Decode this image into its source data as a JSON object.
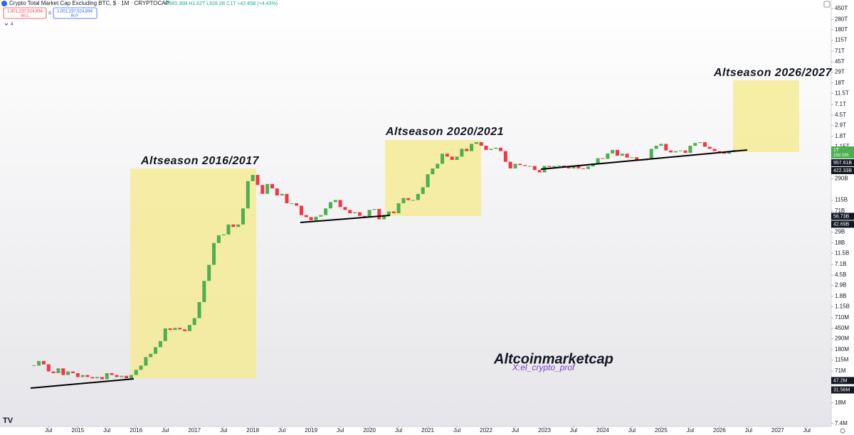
{
  "chart_data": {
    "type": "candlestick",
    "title": "Crypto Total Market Cap Excluding BTC, $ · 1M · CRYPTOCAP",
    "ohlc_text": "O960.36B H1.02T L928.2B C1T +42.45B (+4.43%)",
    "log_scale": true,
    "grid": false,
    "up_color": "#4caf50",
    "down_color": "#f23645",
    "x": [
      "2014-04",
      "2014-05",
      "2014-06",
      "2014-07",
      "2014-08",
      "2014-09",
      "2014-10",
      "2014-11",
      "2014-12",
      "2015-01",
      "2015-02",
      "2015-03",
      "2015-04",
      "2015-05",
      "2015-06",
      "2015-07",
      "2015-08",
      "2015-09",
      "2015-10",
      "2015-11",
      "2015-12",
      "2016-01",
      "2016-02",
      "2016-03",
      "2016-04",
      "2016-05",
      "2016-06",
      "2016-07",
      "2016-08",
      "2016-09",
      "2016-10",
      "2016-11",
      "2016-12",
      "2017-01",
      "2017-02",
      "2017-03",
      "2017-04",
      "2017-05",
      "2017-06",
      "2017-07",
      "2017-08",
      "2017-09",
      "2017-10",
      "2017-11",
      "2017-12",
      "2018-01",
      "2018-02",
      "2018-03",
      "2018-04",
      "2018-05",
      "2018-06",
      "2018-07",
      "2018-08",
      "2018-09",
      "2018-10",
      "2018-11",
      "2018-12",
      "2019-01",
      "2019-02",
      "2019-03",
      "2019-04",
      "2019-05",
      "2019-06",
      "2019-07",
      "2019-08",
      "2019-09",
      "2019-10",
      "2019-11",
      "2019-12",
      "2020-01",
      "2020-02",
      "2020-03",
      "2020-04",
      "2020-05",
      "2020-06",
      "2020-07",
      "2020-08",
      "2020-09",
      "2020-10",
      "2020-11",
      "2020-12",
      "2021-01",
      "2021-02",
      "2021-03",
      "2021-04",
      "2021-05",
      "2021-06",
      "2021-07",
      "2021-08",
      "2021-09",
      "2021-10",
      "2021-11",
      "2021-12",
      "2022-01",
      "2022-02",
      "2022-03",
      "2022-04",
      "2022-05",
      "2022-06",
      "2022-07",
      "2022-08",
      "2022-09",
      "2022-10",
      "2022-11",
      "2022-12",
      "2023-01",
      "2023-02",
      "2023-03",
      "2023-04",
      "2023-05",
      "2023-06",
      "2023-07",
      "2023-08",
      "2023-09",
      "2023-10",
      "2023-11",
      "2023-12",
      "2024-01",
      "2024-02",
      "2024-03",
      "2024-04",
      "2024-05",
      "2024-06",
      "2024-07",
      "2024-08",
      "2024-09",
      "2024-10",
      "2024-11",
      "2024-12",
      "2025-01",
      "2025-02",
      "2025-03",
      "2025-04",
      "2025-05",
      "2025-06",
      "2025-07",
      "2025-08",
      "2025-09",
      "2025-10",
      "2025-11",
      "2025-12",
      "2026-01",
      "2026-02",
      "2026-03",
      "2026-04"
    ],
    "close": [
      90000000.0,
      110000000.0,
      95000000.0,
      70000000.0,
      65000000.0,
      80000000.0,
      60000000.0,
      70000000.0,
      65000000.0,
      55000000.0,
      60000000.0,
      55000000.0,
      52000000.0,
      55000000.0,
      50000000.0,
      65000000.0,
      60000000.0,
      55000000.0,
      58000000.0,
      52000000.0,
      60000000.0,
      75000000.0,
      90000000.0,
      130000000.0,
      150000000.0,
      200000000.0,
      260000000.0,
      450000000.0,
      420000000.0,
      460000000.0,
      430000000.0,
      400000000.0,
      520000000.0,
      700000000.0,
      1400000000.0,
      3500000000.0,
      7000000000.0,
      18000000000.0,
      25000000000.0,
      26000000000.0,
      40000000000.0,
      36000000000.0,
      40000000000.0,
      80000000000.0,
      260000000000.0,
      340000000000.0,
      220000000000.0,
      150000000000.0,
      230000000000.0,
      190000000000.0,
      140000000000.0,
      150000000000.0,
      100000000000.0,
      100000000000.0,
      90000000000.0,
      60000000000.0,
      55000000000.0,
      48000000000.0,
      56000000000.0,
      60000000000.0,
      80000000000.0,
      105000000000.0,
      115000000000.0,
      85000000000.0,
      75000000000.0,
      65000000000.0,
      68000000000.0,
      58000000000.0,
      55000000000.0,
      75000000000.0,
      78000000000.0,
      50000000000.0,
      60000000000.0,
      70000000000.0,
      65000000000.0,
      100000000000.0,
      125000000000.0,
      115000000000.0,
      115000000000.0,
      150000000000.0,
      200000000000.0,
      350000000000.0,
      450000000000.0,
      550000000000.0,
      850000000000.0,
      750000000000.0,
      650000000000.0,
      750000000000.0,
      1050000000000.0,
      950000000000.0,
      1300000000000.0,
      1400000000000.0,
      1200000000000.0,
      1000000000000.0,
      1050000000000.0,
      1100000000000.0,
      950000000000.0,
      600000000000.0,
      450000000000.0,
      550000000000.0,
      520000000000.0,
      500000000000.0,
      500000000000.0,
      420000000000.0,
      380000000000.0,
      500000000000.0,
      480000000000.0,
      500000000000.0,
      510000000000.0,
      480000000000.0,
      450000000000.0,
      500000000000.0,
      450000000000.0,
      440000000000.0,
      490000000000.0,
      560000000000.0,
      700000000000.0,
      680000000000.0,
      860000000000.0,
      1000000000000.0,
      780000000000.0,
      850000000000.0,
      720000000000.0,
      730000000000.0,
      630000000000.0,
      660000000000.0,
      660000000000.0,
      1050000000000.0,
      1200000000000.0,
      1300000000000.0,
      980000000000.0,
      900000000000.0,
      950000000000.0,
      980000000000.0,
      880000000000.0,
      1200000000000.0,
      1350000000000.0,
      1400000000000.0,
      1150000000000.0,
      1050000000000.0,
      950000000000.0,
      900000000000.0,
      850000000000.0,
      960000000000.0,
      1000000000000.0
    ],
    "xlim": [
      "2013-09",
      "2027-12"
    ],
    "ylim": [
      6500000.0,
      650000000000000.0
    ],
    "xticks": [
      {
        "value": "2014-07",
        "label": "Jul"
      },
      {
        "value": "2015-01",
        "label": "2015"
      },
      {
        "value": "2015-07",
        "label": "Jul"
      },
      {
        "value": "2016-01",
        "label": "2016"
      },
      {
        "value": "2016-07",
        "label": "Jul"
      },
      {
        "value": "2017-01",
        "label": "2017"
      },
      {
        "value": "2017-07",
        "label": "Jul"
      },
      {
        "value": "2018-01",
        "label": "2018"
      },
      {
        "value": "2018-07",
        "label": "Jul"
      },
      {
        "value": "2019-01",
        "label": "2019"
      },
      {
        "value": "2019-07",
        "label": "Jul"
      },
      {
        "value": "2020-01",
        "label": "2020"
      },
      {
        "value": "2020-07",
        "label": "Jul"
      },
      {
        "value": "2021-01",
        "label": "2021"
      },
      {
        "value": "2021-07",
        "label": "Jul"
      },
      {
        "value": "2022-01",
        "label": "2022"
      },
      {
        "value": "2022-07",
        "label": "Jul"
      },
      {
        "value": "2023-01",
        "label": "2023"
      },
      {
        "value": "2023-07",
        "label": "Jul"
      },
      {
        "value": "2024-01",
        "label": "2024"
      },
      {
        "value": "2024-07",
        "label": "Jul"
      },
      {
        "value": "2025-01",
        "label": "2025"
      },
      {
        "value": "2025-07",
        "label": "Jul"
      },
      {
        "value": "2026-01",
        "label": "2026"
      },
      {
        "value": "2026-07",
        "label": "Jul"
      },
      {
        "value": "2027-01",
        "label": "2027"
      },
      {
        "value": "2027-07",
        "label": "Jul"
      }
    ],
    "yticks": [
      {
        "value": 450000000000000.0,
        "label": "450T"
      },
      {
        "value": 280000000000000.0,
        "label": "280T"
      },
      {
        "value": 180000000000000.0,
        "label": "180T"
      },
      {
        "value": 115000000000000.0,
        "label": "115T"
      },
      {
        "value": 71000000000000.0,
        "label": "71T"
      },
      {
        "value": 45000000000000.0,
        "label": "45T"
      },
      {
        "value": 29000000000000.0,
        "label": "29T"
      },
      {
        "value": 18000000000000.0,
        "label": "18T"
      },
      {
        "value": 11500000000000.0,
        "label": "11.5T"
      },
      {
        "value": 7100000000000.0,
        "label": "7.1T"
      },
      {
        "value": 4500000000000.0,
        "label": "4.5T"
      },
      {
        "value": 2900000000000.0,
        "label": "2.9T"
      },
      {
        "value": 1800000000000.0,
        "label": "1.8T"
      },
      {
        "value": 1150000000000.0,
        "label": "1.15T"
      },
      {
        "value": 290000000000.0,
        "label": "290B"
      },
      {
        "value": 115000000000.0,
        "label": "115B"
      },
      {
        "value": 71000000000.0,
        "label": "71B"
      },
      {
        "value": 29000000000.0,
        "label": "29B"
      },
      {
        "value": 18000000000.0,
        "label": "18B"
      },
      {
        "value": 11500000000.0,
        "label": "11.5B"
      },
      {
        "value": 7100000000.0,
        "label": "7.1B"
      },
      {
        "value": 4500000000.0,
        "label": "4.5B"
      },
      {
        "value": 2900000000.0,
        "label": "2.9B"
      },
      {
        "value": 1800000000.0,
        "label": "1.8B"
      },
      {
        "value": 1150000000.0,
        "label": "1.15B"
      },
      {
        "value": 710000000.0,
        "label": "710M"
      },
      {
        "value": 450000000.0,
        "label": "450M"
      },
      {
        "value": 290000000.0,
        "label": "290M"
      },
      {
        "value": 180000000.0,
        "label": "180M"
      },
      {
        "value": 115000000.0,
        "label": "115M"
      },
      {
        "value": 71000000.0,
        "label": "71M"
      },
      {
        "value": 18000000.0,
        "label": "18M"
      },
      {
        "value": 7400000.0,
        "label": "7.4M"
      }
    ],
    "price_labels": [
      {
        "value": 1000000000000.0,
        "label": "1T",
        "sub": "15d 10h",
        "color": "#4caf50"
      },
      {
        "value": 957610000000.0,
        "label": "957.61B",
        "color": "#131722"
      },
      {
        "value": 422330000000.0,
        "label": "422.33B",
        "color": "#131722"
      },
      {
        "value": 56730000000.0,
        "label": "56.73B",
        "color": "#131722"
      },
      {
        "value": 42690000000.0,
        "label": "42.69B",
        "color": "#131722"
      },
      {
        "value": 47200000.0,
        "label": "47.2M",
        "color": "#131722"
      },
      {
        "value": 31560000.0,
        "label": "31.56M",
        "color": "#131722"
      }
    ],
    "annotations": [
      "Altseason 2016/2017",
      "Altseason 2020/2021",
      "Altseason 2026/2027"
    ],
    "watermark": "Altcoinmarketcap",
    "credit": "X:el_crypto_prof"
  },
  "toolbar": {
    "sell_price": "1,001,237,524,894",
    "sell": "SELL",
    "spread": "0",
    "buy_price": "1,001,237,524,894",
    "buy": "BUY",
    "indicators": "4"
  }
}
